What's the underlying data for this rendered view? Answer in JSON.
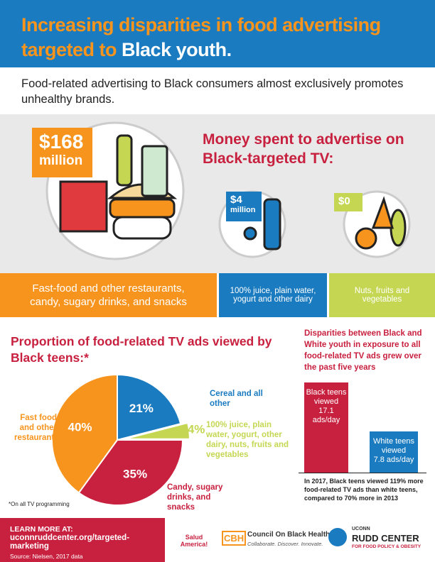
{
  "header": {
    "title_line1": "Increasing disparities in food advertising",
    "title_line2": "targeted to",
    "title_highlight": "Black youth."
  },
  "intro": "Food-related advertising to Black consumers almost exclusively promotes unhealthy brands.",
  "spending": {
    "title": "Money spent to advertise on Black-targeted TV:",
    "items": [
      {
        "amount": "$168",
        "unit": "million",
        "label": "Fast-food and other restaurants, candy, sugary drinks, and snacks"
      },
      {
        "amount": "$4",
        "unit": "million",
        "label": "100% juice, plain water, yogurt and other dairy"
      },
      {
        "amount": "$0",
        "label": "Nuts, fruits and vegetables"
      }
    ]
  },
  "chart_data": [
    {
      "type": "pie",
      "title": "Proportion of food-related TV ads viewed by Black teens:*",
      "categories": [
        "Cereal and all other",
        "100% juice, plain water, yogurt, other dairy, nuts, fruits and vegetables",
        "Candy, sugary drinks, and snacks",
        "Fast food and other restaurants"
      ],
      "values": [
        21,
        4,
        35,
        40
      ],
      "value_labels": [
        "21%",
        "4%",
        "35%",
        "40%"
      ],
      "colors": [
        "#1a7bc0",
        "#c5d752",
        "#c8203f",
        "#f7941d"
      ]
    },
    {
      "type": "bar",
      "title": "Disparities between Black and White youth in exposure to all food-related TV ads grew over the past five years",
      "categories": [
        "Black teens viewed",
        "White teens viewed"
      ],
      "values": [
        17.1,
        7.8
      ],
      "value_labels": [
        "17.1 ads/day",
        "7.8 ads/day"
      ],
      "colors": [
        "#c8203f",
        "#1a7bc0"
      ],
      "note": "In 2017, Black teens viewed 119% more food-related TV ads than white teens, compared to 70% more in 2013"
    }
  ],
  "footnote": "*On all TV programming",
  "footer": {
    "learn": "LEARN MORE AT:",
    "url": "uconnruddcenter.org/targeted-marketing",
    "source": "Source: Nielsen, 2017 data",
    "logo1": "Salud America!",
    "logo2_mark": "CBH",
    "logo2_name": "Council On Black Health",
    "logo2_tagline": "Collaborate. Discover. Innovate.",
    "logo3_top": "UCONN",
    "logo3_name": "RUDD CENTER",
    "logo3_sub": "FOR FOOD POLICY & OBESITY"
  }
}
